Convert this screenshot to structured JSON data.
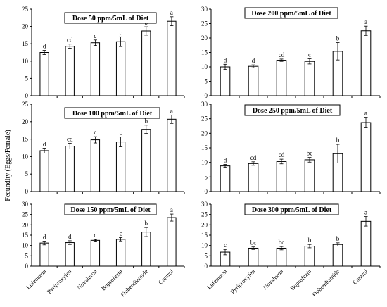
{
  "ylabel": "Fecundity (Eggs/Female)",
  "categories": [
    "Lufenuron",
    "Pyriproxyfen",
    "Novaluron",
    "Buprofezin",
    "Flubendiamide",
    "Control"
  ],
  "chart_data": [
    {
      "type": "bar",
      "title": "Dose 50 ppm/5mL of Diet",
      "ylim": [
        0,
        25
      ],
      "yticks": [
        0,
        5,
        10,
        15,
        20,
        25
      ],
      "values": [
        12.5,
        14.3,
        15.3,
        15.6,
        18.7,
        21.5
      ],
      "errors": [
        0.6,
        0.6,
        0.8,
        1.4,
        1.2,
        1.3
      ],
      "letters": [
        "d",
        "cd",
        "c",
        "c",
        "b",
        "a"
      ]
    },
    {
      "type": "bar",
      "title": "Dose 200 ppm/5mL of Diet",
      "ylim": [
        0,
        30
      ],
      "yticks": [
        0,
        5,
        10,
        15,
        20,
        25,
        30
      ],
      "values": [
        10.0,
        10.2,
        12.3,
        11.9,
        15.4,
        22.5
      ],
      "errors": [
        0.9,
        0.5,
        0.4,
        0.9,
        3.0,
        1.6
      ],
      "letters": [
        "d",
        "d",
        "cd",
        "c",
        "b",
        "a"
      ]
    },
    {
      "type": "bar",
      "title": "Dose 100 ppm/5mL of Diet",
      "ylim": [
        0,
        25
      ],
      "yticks": [
        0,
        5,
        10,
        15,
        20,
        25
      ],
      "values": [
        11.7,
        13.0,
        14.8,
        14.2,
        17.8,
        20.7
      ],
      "errors": [
        0.7,
        0.8,
        0.9,
        1.4,
        1.2,
        1.2
      ],
      "letters": [
        "d",
        "cd",
        "c",
        "c",
        "b",
        "a"
      ]
    },
    {
      "type": "bar",
      "title": "Dose 250 ppm/5mL of Diet",
      "ylim": [
        0,
        30
      ],
      "yticks": [
        0,
        5,
        10,
        15,
        20,
        25,
        30
      ],
      "values": [
        8.8,
        9.6,
        10.3,
        10.9,
        13.0,
        23.7
      ],
      "errors": [
        0.5,
        0.6,
        0.8,
        0.8,
        3.2,
        1.8
      ],
      "letters": [
        "d",
        "cd",
        "cd",
        "bc",
        "b",
        "a"
      ]
    },
    {
      "type": "bar",
      "title": "Dose 150 ppm/5mL of Diet",
      "ylim": [
        0,
        30
      ],
      "yticks": [
        0,
        5,
        10,
        15,
        20,
        25,
        30
      ],
      "values": [
        11.2,
        11.4,
        12.5,
        13.0,
        16.5,
        23.5
      ],
      "errors": [
        0.9,
        0.9,
        0.4,
        0.8,
        2.2,
        1.7
      ],
      "letters": [
        "d",
        "d",
        "c",
        "c",
        "b",
        "a"
      ]
    },
    {
      "type": "bar",
      "title": "Dose 300 ppm/5mL of Diet",
      "ylim": [
        0,
        30
      ],
      "yticks": [
        0,
        5,
        10,
        15,
        20,
        25,
        30
      ],
      "values": [
        6.8,
        8.7,
        8.7,
        9.7,
        10.5,
        21.7
      ],
      "errors": [
        1.3,
        0.6,
        0.8,
        0.8,
        0.8,
        2.3
      ],
      "letters": [
        "c",
        "bc",
        "bc",
        "b",
        "b",
        "a"
      ]
    }
  ]
}
